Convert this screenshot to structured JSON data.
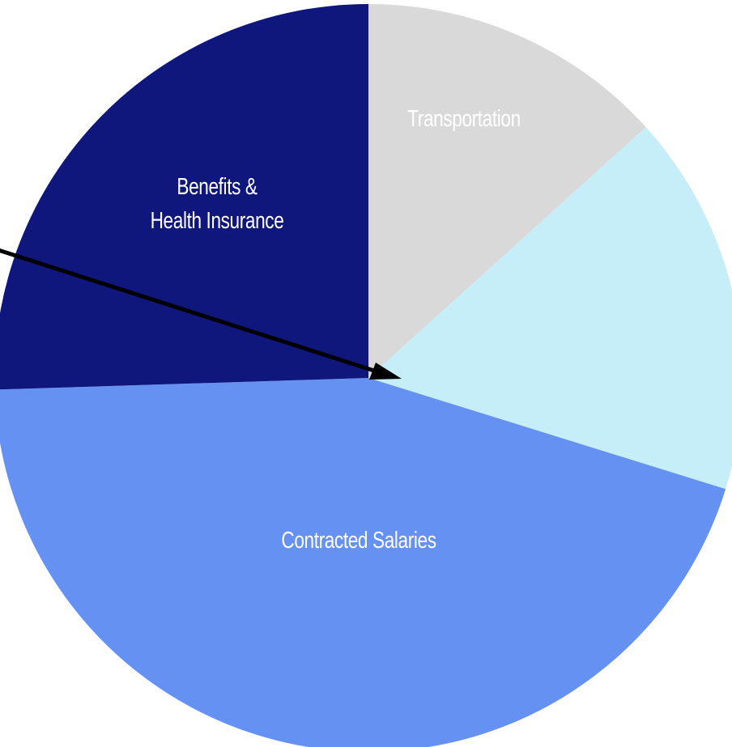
{
  "chart_data": {
    "type": "pie",
    "categories": [
      "Transportation",
      null,
      "Contracted Salaries",
      "Benefits &\nHealth Insurance"
    ],
    "values": [
      13.3,
      16.5,
      44.7,
      25.5
    ],
    "colors": [
      "#d9d9d9",
      "#c5eef8",
      "#6592f2",
      "#0f177c"
    ],
    "start_angle": 0,
    "direction": "clockwise"
  }
}
